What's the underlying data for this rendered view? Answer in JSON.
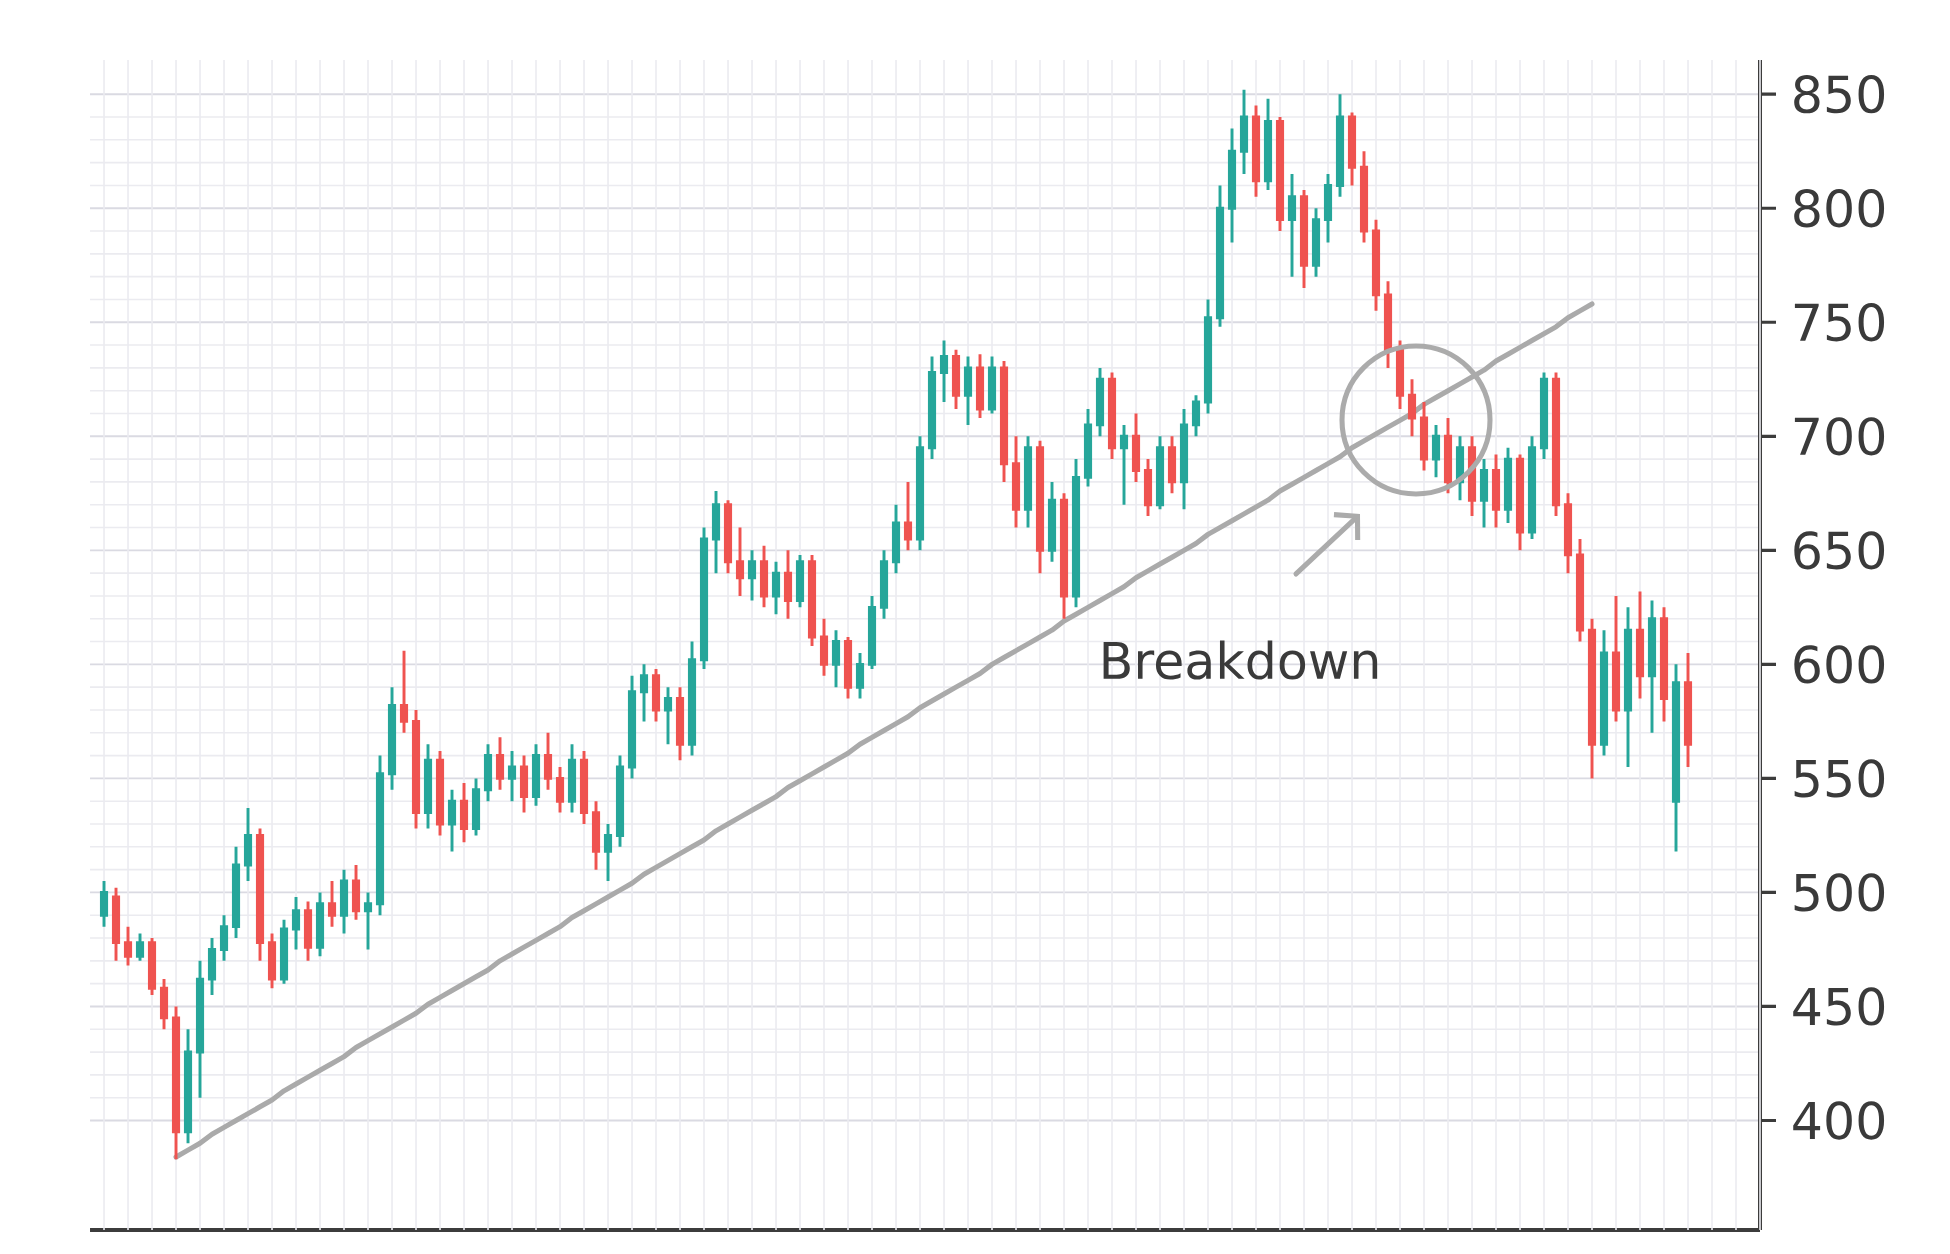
{
  "chart_data": {
    "type": "candlestick",
    "categories": [
      null,
      null,
      null,
      null,
      null,
      null,
      null,
      null,
      null,
      null,
      null,
      null,
      null,
      null,
      null,
      null,
      null,
      null,
      null,
      null,
      null,
      null,
      null,
      null,
      null,
      null,
      null,
      null,
      null,
      null,
      null,
      null,
      null,
      null,
      null,
      null,
      null,
      null,
      null,
      null,
      null,
      null,
      null,
      null,
      null,
      null,
      null,
      null,
      null,
      null,
      null,
      null,
      null,
      null,
      null,
      null,
      null,
      null,
      null,
      null,
      null,
      null,
      null,
      null,
      null,
      null,
      null,
      null,
      null,
      null,
      null,
      null,
      null,
      null,
      null,
      null,
      null,
      null,
      null,
      null,
      null,
      null,
      null,
      null,
      null,
      null,
      null,
      null,
      null,
      null,
      null,
      null,
      null,
      null,
      null,
      null,
      null,
      null,
      null,
      null,
      null,
      null,
      null,
      null,
      null,
      null,
      null,
      null,
      null,
      null,
      null,
      null,
      null,
      null,
      null,
      null,
      null,
      null,
      null,
      null,
      null,
      null,
      null,
      null,
      null,
      null,
      null,
      null,
      null,
      null,
      null,
      null,
      null
    ],
    "ylim": [
      352,
      865
    ],
    "yticks": [
      400,
      450,
      500,
      550,
      600,
      650,
      700,
      750,
      800,
      850
    ],
    "grid": true,
    "annotations": [
      "Breakdown"
    ],
    "colors": [
      "#26a69a",
      "#ef5350",
      "#ef5350",
      "#26a69a",
      "#ef5350",
      "#ef5350",
      "#ef5350",
      "#26a69a",
      "#26a69a",
      "#26a69a",
      "#26a69a",
      "#26a69a",
      "#26a69a",
      "#ef5350",
      "#ef5350",
      "#26a69a",
      "#26a69a",
      "#ef5350",
      "#26a69a",
      "#ef5350",
      "#26a69a",
      "#ef5350",
      "#26a69a",
      "#26a69a",
      "#26a69a",
      "#ef5350",
      "#ef5350",
      "#26a69a",
      "#ef5350",
      "#26a69a",
      "#ef5350",
      "#26a69a",
      "#26a69a",
      "#ef5350",
      "#26a69a",
      "#ef5350",
      "#26a69a",
      "#ef5350",
      "#ef5350",
      "#26a69a",
      "#ef5350",
      "#ef5350",
      "#26a69a",
      "#26a69a",
      "#26a69a",
      "#26a69a",
      "#ef5350",
      "#26a69a",
      "#ef5350",
      "#26a69a",
      "#26a69a",
      "#26a69a",
      "#ef5350",
      "#ef5350",
      "#26a69a",
      "#ef5350",
      "#26a69a",
      "#ef5350",
      "#26a69a",
      "#ef5350",
      "#ef5350",
      "#26a69a",
      "#ef5350",
      "#26a69a",
      "#26a69a",
      "#26a69a",
      "#26a69a",
      "#ef5350",
      "#26a69a",
      "#26a69a",
      "#26a69a",
      "#ef5350",
      "#26a69a",
      "#ef5350",
      "#26a69a",
      "#ef5350",
      "#ef5350",
      "#26a69a",
      "#ef5350",
      "#26a69a",
      "#ef5350",
      "#26a69a",
      "#26a69a",
      "#26a69a",
      "#ef5350",
      "#26a69a",
      "#ef5350",
      "#ef5350",
      "#26a69a",
      "#ef5350",
      "#26a69a",
      "#26a69a",
      "#26a69a",
      "#26a69a",
      "#26a69a",
      "#26a69a",
      "#ef5350",
      "#26a69a",
      "#ef5350",
      "#26a69a",
      "#ef5350",
      "#26a69a",
      "#26a69a",
      "#26a69a",
      "#ef5350",
      "#ef5350",
      "#ef5350",
      "#ef5350",
      "#ef5350",
      "#ef5350",
      "#ef5350",
      "#26a69a",
      "#ef5350",
      "#26a69a",
      "#ef5350",
      "#26a69a",
      "#ef5350",
      "#26a69a",
      "#ef5350",
      "#26a69a",
      "#26a69a",
      "#ef5350",
      "#ef5350",
      "#ef5350",
      "#ef5350",
      "#26a69a",
      "#ef5350",
      "#26a69a",
      "#ef5350",
      "#26a69a",
      "#ef5350",
      "#26a69a",
      "#ef5350"
    ],
    "ohlc": [
      [
        490,
        505,
        485,
        500
      ],
      [
        498,
        502,
        470,
        478
      ],
      [
        478,
        485,
        468,
        472
      ],
      [
        472,
        482,
        470,
        478
      ],
      [
        478,
        480,
        455,
        458
      ],
      [
        458,
        462,
        440,
        445
      ],
      [
        445,
        450,
        383,
        395
      ],
      [
        395,
        440,
        390,
        430
      ],
      [
        430,
        470,
        410,
        462
      ],
      [
        462,
        480,
        455,
        475
      ],
      [
        475,
        490,
        470,
        485
      ],
      [
        485,
        520,
        480,
        512
      ],
      [
        512,
        537,
        505,
        525
      ],
      [
        525,
        528,
        470,
        478
      ],
      [
        478,
        482,
        458,
        462
      ],
      [
        462,
        488,
        460,
        484
      ],
      [
        484,
        498,
        475,
        492
      ],
      [
        492,
        496,
        470,
        476
      ],
      [
        476,
        500,
        472,
        495
      ],
      [
        495,
        505,
        485,
        490
      ],
      [
        490,
        510,
        482,
        505
      ],
      [
        505,
        512,
        488,
        492
      ],
      [
        492,
        500,
        475,
        495
      ],
      [
        495,
        560,
        490,
        552
      ],
      [
        552,
        590,
        545,
        582
      ],
      [
        582,
        606,
        570,
        575
      ],
      [
        575,
        580,
        528,
        535
      ],
      [
        535,
        565,
        528,
        558
      ],
      [
        558,
        562,
        525,
        530
      ],
      [
        530,
        545,
        518,
        540
      ],
      [
        540,
        548,
        522,
        528
      ],
      [
        528,
        550,
        525,
        545
      ],
      [
        545,
        565,
        540,
        560
      ],
      [
        560,
        568,
        545,
        550
      ],
      [
        550,
        562,
        540,
        555
      ],
      [
        555,
        560,
        535,
        542
      ],
      [
        542,
        565,
        538,
        560
      ],
      [
        560,
        570,
        545,
        550
      ],
      [
        550,
        555,
        535,
        540
      ],
      [
        540,
        565,
        535,
        558
      ],
      [
        558,
        562,
        530,
        535
      ],
      [
        535,
        540,
        510,
        518
      ],
      [
        518,
        530,
        505,
        525
      ],
      [
        525,
        560,
        520,
        555
      ],
      [
        555,
        595,
        550,
        588
      ],
      [
        588,
        600,
        575,
        595
      ],
      [
        595,
        598,
        575,
        580
      ],
      [
        580,
        590,
        565,
        585
      ],
      [
        585,
        590,
        558,
        565
      ],
      [
        565,
        610,
        560,
        602
      ],
      [
        602,
        660,
        598,
        655
      ],
      [
        655,
        676,
        640,
        670
      ],
      [
        670,
        672,
        640,
        645
      ],
      [
        645,
        660,
        630,
        638
      ],
      [
        638,
        650,
        628,
        645
      ],
      [
        645,
        652,
        625,
        630
      ],
      [
        630,
        645,
        622,
        640
      ],
      [
        640,
        650,
        620,
        628
      ],
      [
        628,
        648,
        625,
        645
      ],
      [
        645,
        648,
        608,
        612
      ],
      [
        612,
        620,
        595,
        600
      ],
      [
        600,
        615,
        590,
        610
      ],
      [
        610,
        612,
        585,
        590
      ],
      [
        590,
        605,
        585,
        600
      ],
      [
        600,
        630,
        598,
        625
      ],
      [
        625,
        650,
        620,
        645
      ],
      [
        645,
        670,
        640,
        662
      ],
      [
        662,
        680,
        650,
        655
      ],
      [
        655,
        700,
        650,
        695
      ],
      [
        695,
        735,
        690,
        728
      ],
      [
        728,
        742,
        715,
        735
      ],
      [
        735,
        738,
        712,
        718
      ],
      [
        718,
        735,
        705,
        730
      ],
      [
        730,
        736,
        708,
        712
      ],
      [
        712,
        735,
        710,
        730
      ],
      [
        730,
        733,
        680,
        688
      ],
      [
        688,
        700,
        660,
        668
      ],
      [
        668,
        700,
        660,
        695
      ],
      [
        695,
        698,
        640,
        650
      ],
      [
        650,
        680,
        645,
        672
      ],
      [
        672,
        675,
        620,
        630
      ],
      [
        630,
        690,
        625,
        682
      ],
      [
        682,
        712,
        678,
        705
      ],
      [
        705,
        730,
        700,
        725
      ],
      [
        725,
        728,
        690,
        695
      ],
      [
        695,
        705,
        670,
        700
      ],
      [
        700,
        710,
        680,
        685
      ],
      [
        685,
        690,
        665,
        670
      ],
      [
        670,
        700,
        668,
        695
      ],
      [
        695,
        700,
        675,
        680
      ],
      [
        680,
        712,
        668,
        705
      ],
      [
        705,
        718,
        700,
        715
      ],
      [
        715,
        760,
        710,
        752
      ],
      [
        752,
        810,
        748,
        800
      ],
      [
        800,
        835,
        785,
        825
      ],
      [
        825,
        852,
        815,
        840
      ],
      [
        840,
        845,
        805,
        812
      ],
      [
        812,
        848,
        808,
        838
      ],
      [
        838,
        840,
        790,
        795
      ],
      [
        795,
        815,
        770,
        805
      ],
      [
        805,
        808,
        765,
        775
      ],
      [
        775,
        800,
        770,
        795
      ],
      [
        795,
        815,
        785,
        810
      ],
      [
        810,
        850,
        805,
        840
      ],
      [
        840,
        842,
        810,
        818
      ],
      [
        818,
        825,
        785,
        790
      ],
      [
        790,
        795,
        755,
        762
      ],
      [
        762,
        768,
        730,
        738
      ],
      [
        738,
        742,
        712,
        718
      ],
      [
        718,
        725,
        700,
        708
      ],
      [
        708,
        715,
        685,
        690
      ],
      [
        690,
        705,
        682,
        700
      ],
      [
        700,
        708,
        675,
        680
      ],
      [
        680,
        700,
        672,
        695
      ],
      [
        695,
        700,
        665,
        672
      ],
      [
        672,
        690,
        660,
        685
      ],
      [
        685,
        692,
        660,
        668
      ],
      [
        668,
        695,
        662,
        690
      ],
      [
        690,
        692,
        650,
        658
      ],
      [
        658,
        700,
        655,
        695
      ],
      [
        695,
        728,
        690,
        725
      ],
      [
        725,
        728,
        665,
        670
      ],
      [
        670,
        675,
        640,
        648
      ],
      [
        648,
        655,
        610,
        615
      ],
      [
        615,
        620,
        550,
        565
      ],
      [
        565,
        615,
        560,
        605
      ],
      [
        605,
        630,
        575,
        580
      ],
      [
        580,
        625,
        555,
        615
      ],
      [
        615,
        632,
        585,
        595
      ],
      [
        595,
        628,
        570,
        620
      ],
      [
        620,
        625,
        575,
        585
      ],
      [
        540,
        600,
        518,
        592
      ],
      [
        592,
        605,
        555,
        565
      ]
    ],
    "series": [
      {
        "type": "line",
        "color": "#aaaaaa",
        "values": [
          null,
          null,
          null,
          null,
          null,
          null,
          384,
          387,
          390,
          394,
          397,
          400,
          403,
          406,
          409,
          413,
          416,
          419,
          422,
          425,
          428,
          432,
          435,
          438,
          441,
          444,
          447,
          451,
          454,
          457,
          460,
          463,
          466,
          470,
          473,
          476,
          479,
          482,
          485,
          489,
          492,
          495,
          498,
          501,
          504,
          508,
          511,
          514,
          517,
          520,
          523,
          527,
          530,
          533,
          536,
          539,
          542,
          546,
          549,
          552,
          555,
          558,
          561,
          565,
          568,
          571,
          574,
          577,
          581,
          584,
          587,
          590,
          593,
          596,
          600,
          603,
          606,
          609,
          612,
          615,
          619,
          622,
          625,
          628,
          631,
          634,
          638,
          641,
          644,
          647,
          650,
          653,
          657,
          660,
          663,
          666,
          669,
          672,
          676,
          679,
          682,
          685,
          688,
          691,
          695,
          698,
          701,
          704,
          707,
          710,
          714,
          717,
          720,
          723,
          726,
          729,
          733,
          736,
          739,
          742,
          745,
          748,
          752,
          755,
          758,
          null,
          null,
          null,
          null,
          null,
          null,
          null,
          null
        ]
      }
    ]
  }
}
